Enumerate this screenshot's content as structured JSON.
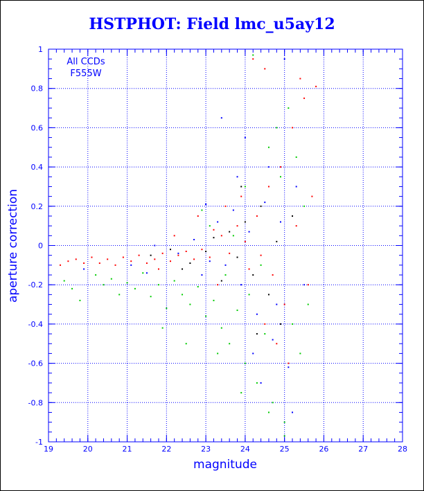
{
  "chart_data": {
    "type": "scatter",
    "title": "HSTPHOT: Field lmc_u5ay12",
    "xlabel": "magnitude",
    "ylabel": "aperture correction",
    "xlim": [
      19,
      28
    ],
    "ylim": [
      -1,
      1
    ],
    "xticks": [
      "19",
      "20",
      "21",
      "22",
      "23",
      "24",
      "25",
      "26",
      "27",
      "28"
    ],
    "yticks": [
      "1",
      "0.8",
      "0.6",
      "0.4",
      "0.2",
      "0",
      "-0.2",
      "-0.4",
      "-0.6",
      "-0.8",
      "-1"
    ],
    "grid": true,
    "annotations": [
      "All CCDs",
      "F555W"
    ],
    "series_colors": [
      "#ff0000",
      "#00cc00",
      "#0000ff",
      "#000000"
    ],
    "series": [
      {
        "color": "#ff0000",
        "points": [
          [
            19.3,
            -0.1
          ],
          [
            19.5,
            -0.08
          ],
          [
            19.7,
            -0.07
          ],
          [
            19.9,
            -0.09
          ],
          [
            20.1,
            -0.06
          ],
          [
            20.3,
            -0.09
          ],
          [
            20.5,
            -0.07
          ],
          [
            20.7,
            -0.1
          ],
          [
            20.9,
            -0.06
          ],
          [
            21.1,
            -0.08
          ],
          [
            21.3,
            -0.05
          ],
          [
            21.5,
            -0.09
          ],
          [
            21.7,
            -0.07
          ],
          [
            21.9,
            -0.04
          ],
          [
            22.1,
            -0.08
          ],
          [
            22.3,
            -0.05
          ],
          [
            22.5,
            -0.03
          ],
          [
            22.7,
            -0.07
          ],
          [
            22.9,
            -0.02
          ],
          [
            23.1,
            -0.06
          ],
          [
            23.2,
            0.08
          ],
          [
            23.4,
            0.05
          ],
          [
            23.6,
            -0.04
          ],
          [
            23.8,
            0.1
          ],
          [
            24.0,
            0.02
          ],
          [
            24.1,
            -0.12
          ],
          [
            24.3,
            0.15
          ],
          [
            24.4,
            -0.05
          ],
          [
            24.6,
            0.3
          ],
          [
            24.7,
            -0.15
          ],
          [
            24.9,
            0.4
          ],
          [
            25.0,
            -0.3
          ],
          [
            25.2,
            0.6
          ],
          [
            25.3,
            0.1
          ],
          [
            25.5,
            0.75
          ],
          [
            25.6,
            -0.2
          ],
          [
            25.7,
            0.25
          ],
          [
            24.2,
            0.95
          ],
          [
            24.5,
            0.9
          ],
          [
            25.4,
            0.85
          ],
          [
            23.5,
            0.2
          ],
          [
            23.9,
            0.25
          ],
          [
            24.8,
            -0.5
          ],
          [
            25.1,
            -0.6
          ],
          [
            22.8,
            0.15
          ],
          [
            22.2,
            0.05
          ],
          [
            21.8,
            -0.12
          ],
          [
            23.3,
            -0.2
          ],
          [
            24.5,
            -0.4
          ],
          [
            25.8,
            0.81
          ]
        ]
      },
      {
        "color": "#00cc00",
        "points": [
          [
            19.4,
            -0.18
          ],
          [
            19.6,
            -0.22
          ],
          [
            19.8,
            -0.28
          ],
          [
            20.2,
            -0.15
          ],
          [
            20.4,
            -0.2
          ],
          [
            20.6,
            -0.17
          ],
          [
            20.8,
            -0.25
          ],
          [
            21.0,
            -0.19
          ],
          [
            21.2,
            -0.22
          ],
          [
            21.4,
            -0.14
          ],
          [
            21.6,
            -0.26
          ],
          [
            21.8,
            -0.2
          ],
          [
            22.0,
            -0.32
          ],
          [
            22.2,
            -0.18
          ],
          [
            22.4,
            -0.25
          ],
          [
            22.6,
            -0.3
          ],
          [
            22.8,
            -0.21
          ],
          [
            23.0,
            -0.36
          ],
          [
            23.2,
            -0.28
          ],
          [
            23.4,
            -0.42
          ],
          [
            23.5,
            -0.15
          ],
          [
            23.6,
            -0.5
          ],
          [
            23.8,
            -0.33
          ],
          [
            24.0,
            -0.6
          ],
          [
            24.1,
            -0.25
          ],
          [
            24.2,
            0.97
          ],
          [
            24.3,
            -0.7
          ],
          [
            24.5,
            -0.45
          ],
          [
            24.6,
            0.5
          ],
          [
            24.7,
            -0.8
          ],
          [
            24.9,
            0.35
          ],
          [
            25.0,
            -0.9
          ],
          [
            25.1,
            0.7
          ],
          [
            25.2,
            -0.4
          ],
          [
            25.3,
            0.45
          ],
          [
            25.4,
            -0.55
          ],
          [
            25.5,
            0.2
          ],
          [
            24.4,
            -0.1
          ],
          [
            23.7,
            0.05
          ],
          [
            23.3,
            -0.55
          ],
          [
            23.9,
            -0.75
          ],
          [
            24.8,
            0.6
          ],
          [
            25.0,
            -0.97
          ],
          [
            22.5,
            -0.5
          ],
          [
            21.9,
            -0.42
          ],
          [
            23.1,
            0.1
          ],
          [
            24.6,
            -0.85
          ],
          [
            22.9,
            0.18
          ],
          [
            25.6,
            -0.3
          ],
          [
            24.0,
            0.3
          ]
        ]
      },
      {
        "color": "#0000ff",
        "points": [
          [
            19.9,
            -0.12
          ],
          [
            21.1,
            -0.1
          ],
          [
            21.7,
            0.0
          ],
          [
            22.3,
            -0.04
          ],
          [
            22.7,
            0.03
          ],
          [
            23.1,
            -0.08
          ],
          [
            23.3,
            0.12
          ],
          [
            23.5,
            -0.1
          ],
          [
            23.7,
            0.18
          ],
          [
            23.9,
            -0.2
          ],
          [
            24.1,
            0.07
          ],
          [
            24.3,
            -0.35
          ],
          [
            24.5,
            0.22
          ],
          [
            24.7,
            -0.48
          ],
          [
            24.9,
            0.12
          ],
          [
            25.1,
            -0.62
          ],
          [
            25.3,
            0.3
          ],
          [
            24.0,
            0.55
          ],
          [
            24.6,
            0.4
          ],
          [
            23.8,
            0.35
          ],
          [
            25.5,
            -0.2
          ],
          [
            22.9,
            -0.15
          ],
          [
            24.2,
            -0.55
          ],
          [
            25.0,
            0.95
          ],
          [
            23.4,
            0.65
          ],
          [
            24.8,
            -0.3
          ],
          [
            21.5,
            -0.14
          ],
          [
            23.0,
            0.21
          ],
          [
            25.2,
            -0.85
          ],
          [
            24.4,
            -0.7
          ]
        ]
      },
      {
        "color": "#000000",
        "points": [
          [
            21.6,
            -0.05
          ],
          [
            22.1,
            -0.02
          ],
          [
            22.6,
            -0.09
          ],
          [
            23.0,
            -0.03
          ],
          [
            23.2,
            0.04
          ],
          [
            23.6,
            0.07
          ],
          [
            23.8,
            -0.06
          ],
          [
            24.0,
            0.12
          ],
          [
            24.2,
            -0.15
          ],
          [
            24.4,
            0.2
          ],
          [
            24.6,
            -0.25
          ],
          [
            24.8,
            0.02
          ],
          [
            22.4,
            -0.12
          ],
          [
            23.4,
            -0.18
          ],
          [
            24.9,
            -0.4
          ],
          [
            23.9,
            0.3
          ],
          [
            24.3,
            -0.45
          ],
          [
            25.2,
            0.15
          ]
        ]
      }
    ]
  }
}
